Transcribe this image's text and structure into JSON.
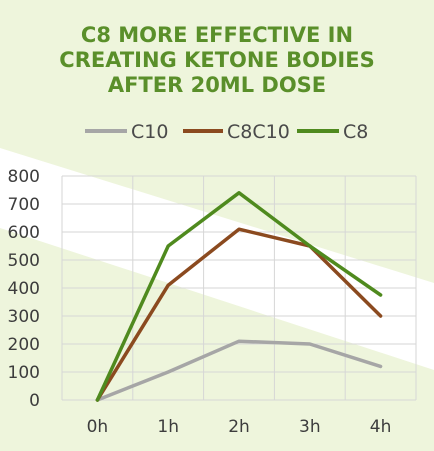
{
  "chart_data": {
    "type": "line",
    "title": [
      "C8 MORE EFFECTIVE IN",
      "CREATING KETONE BODIES",
      "AFTER 20ML DOSE"
    ],
    "categories": [
      "0h",
      "1h",
      "2h",
      "3h",
      "4h"
    ],
    "y_ticks": [
      "0",
      "100",
      "200",
      "300",
      "400",
      "500",
      "600",
      "700",
      "800"
    ],
    "ylim": [
      0,
      800
    ],
    "grid": true,
    "legend_position": "top",
    "series": [
      {
        "name": "C10",
        "color": "#a6a6a6",
        "values": [
          0,
          100,
          210,
          200,
          120
        ]
      },
      {
        "name": "C8C10",
        "color": "#8b4a1f",
        "values": [
          0,
          410,
          610,
          550,
          300
        ]
      },
      {
        "name": "C8",
        "color": "#4f8a1e",
        "values": [
          0,
          550,
          740,
          550,
          375
        ]
      }
    ]
  }
}
